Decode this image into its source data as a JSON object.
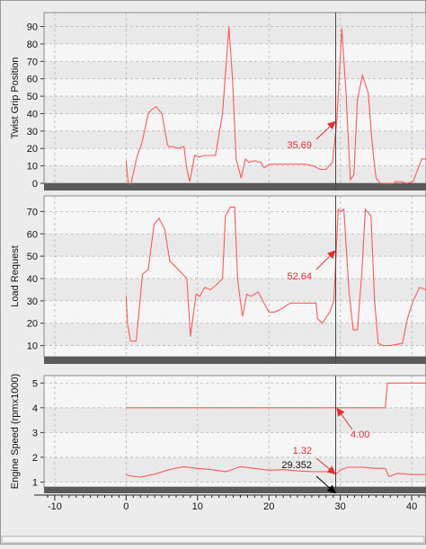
{
  "chart_data": [
    {
      "type": "line",
      "ylabel": "Twist Grip Position",
      "ylim": [
        0,
        98
      ],
      "yticks": [
        0,
        10,
        20,
        30,
        40,
        50,
        60,
        70,
        80,
        90
      ],
      "xlim": [
        -11.5,
        42
      ],
      "grid": true,
      "series": [
        {
          "color": "#ff5a5a",
          "x": [
            0,
            0.1,
            0.3,
            0.7,
            1.5,
            2.2,
            3.1,
            3.5,
            4.2,
            5,
            5.8,
            6,
            6.6,
            7.2,
            8.1,
            8.5,
            8.9,
            9.2,
            9.6,
            10.2,
            10.9,
            11.2,
            12.5,
            13.5,
            14.4,
            14.9,
            15.4,
            16.1,
            16.7,
            17.2,
            18,
            18.9,
            19.3,
            20.2,
            21.1,
            23,
            25,
            26.3,
            27.1,
            28,
            28.9,
            29.5,
            30.2,
            30.8,
            31.4,
            31.9,
            32.4,
            33.1,
            33.9,
            34.5,
            35,
            35.6,
            36.5,
            37.5,
            37.7,
            38.5,
            39.3,
            40.2,
            41.4,
            42
          ],
          "y": [
            13,
            8,
            0,
            0,
            15,
            23,
            40,
            42,
            44,
            40,
            22,
            21,
            21,
            20,
            21,
            8,
            1,
            7,
            16,
            15,
            16,
            16,
            16,
            40,
            90,
            60,
            14,
            3,
            14,
            12,
            13,
            12,
            9,
            11,
            11,
            11,
            11,
            10,
            8,
            8,
            12,
            35,
            89,
            52,
            2,
            5,
            48,
            62,
            52,
            21,
            3,
            0,
            0,
            0,
            1,
            1,
            0,
            1,
            14,
            14
          ]
        }
      ],
      "annotations": [
        {
          "text": "35.69",
          "x": 29.3,
          "y": 35.69
        }
      ]
    },
    {
      "type": "line",
      "ylabel": "Load Request",
      "ylim": [
        5,
        77
      ],
      "yticks": [
        10,
        20,
        30,
        40,
        50,
        60,
        70
      ],
      "xlim": [
        -11.5,
        42
      ],
      "grid": true,
      "series": [
        {
          "color": "#ff5a5a",
          "x": [
            0,
            0.2,
            0.6,
            1.4,
            2.3,
            3.1,
            3.9,
            4.6,
            5.4,
            6.1,
            7.6,
            8.2,
            8.5,
            9,
            9.8,
            10.3,
            11,
            11.8,
            12.6,
            13.5,
            13.9,
            14.6,
            15.2,
            15.6,
            16.3,
            16.9,
            17.5,
            18.5,
            19.3,
            20,
            20.8,
            21.5,
            23,
            25,
            26.6,
            26.8,
            27.5,
            28.5,
            29.1,
            29.7,
            30,
            30.5,
            31.2,
            31.8,
            32.4,
            33,
            33.5,
            34.3,
            34.8,
            35.3,
            36,
            37,
            38.7,
            39.4,
            40.2,
            41.1,
            42
          ],
          "y": [
            32,
            20,
            12,
            12,
            42,
            44,
            64,
            67,
            62,
            48,
            43,
            41,
            40,
            14,
            33,
            32,
            36,
            35,
            37,
            40,
            68,
            72,
            72,
            40,
            23,
            33,
            32,
            34,
            29,
            25,
            25,
            26,
            29,
            29,
            29,
            22,
            20,
            25,
            30,
            71,
            70,
            71,
            35,
            17,
            17,
            42,
            71,
            68,
            30,
            11,
            10,
            10,
            11,
            22,
            30,
            36,
            35
          ]
        }
      ],
      "annotations": [
        {
          "text": "52.64",
          "x": 29.5,
          "y": 52.64
        }
      ]
    },
    {
      "type": "line",
      "ylabel": "Engine Speed (rpmx1000)",
      "ylim": [
        0.8,
        5.3
      ],
      "yticks": [
        1,
        2,
        3,
        4,
        5
      ],
      "xlim": [
        -11.5,
        42
      ],
      "xticks": [
        -10,
        0,
        10,
        20,
        30,
        40
      ],
      "grid": true,
      "series": [
        {
          "color": "#ff5a5a",
          "x": [
            0,
            0.5,
            2,
            4,
            6,
            8,
            10,
            12,
            14,
            16,
            18,
            20,
            22,
            24,
            26,
            28,
            29.4,
            30,
            31,
            33,
            35,
            36.3,
            36.8,
            38,
            40,
            42
          ],
          "y": [
            1.3,
            1.25,
            1.2,
            1.32,
            1.5,
            1.62,
            1.55,
            1.5,
            1.42,
            1.62,
            1.55,
            1.48,
            1.5,
            1.45,
            1.42,
            1.42,
            1.32,
            1.48,
            1.6,
            1.6,
            1.55,
            1.55,
            1.22,
            1.35,
            1.3,
            1.3
          ]
        },
        {
          "color": "#ff5a5a",
          "x": [
            0,
            36.3,
            36.6,
            42
          ],
          "y": [
            4,
            4,
            5,
            5
          ]
        }
      ],
      "annotations": [
        {
          "text": "1.32",
          "x": 29.4,
          "y": 1.32
        },
        {
          "text": "4.00",
          "x": 29.4,
          "y": 4.0
        },
        {
          "text": "29.352",
          "x": 29.352,
          "y": 0.9
        }
      ]
    }
  ],
  "colors": {
    "line": "#ff5a5a",
    "label_red": "#e03030",
    "cursor": "#444444",
    "band_dark": "#e9e9e9",
    "band_light": "#f6f6f6",
    "gridline": "#b5b5b5"
  }
}
